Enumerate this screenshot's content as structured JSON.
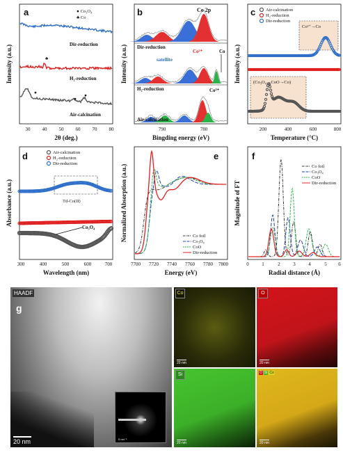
{
  "panel_a": {
    "letter": "a",
    "xlabel": "2θ (deg.)",
    "ylabel": "Intensity (a.u.)",
    "ticks": [
      "30",
      "40",
      "50",
      "60",
      "70",
      "80"
    ],
    "legend": [
      {
        "symbol": "●",
        "label": "Co₃O₄"
      },
      {
        "symbol": "♣",
        "label": "Co"
      }
    ],
    "curves": [
      {
        "label": "Dir-reduction",
        "color": "#2f6fc9"
      },
      {
        "label": "H₂-reduction",
        "color": "#e02020"
      },
      {
        "label": "Air-calcination",
        "color": "#555555"
      }
    ]
  },
  "panel_b": {
    "letter": "b",
    "xlabel": "Bingding energy (eV)",
    "ylabel": "Intensity (a.u.)",
    "ticks": [
      "790",
      "780"
    ],
    "title": "Co 2p",
    "curves": [
      {
        "label": "Dir-reduction"
      },
      {
        "label": "H₂-reduction"
      },
      {
        "label": "Air-calcination"
      }
    ],
    "annotations": {
      "satellite": "satellite",
      "co2": "Co²⁺",
      "co": "Co",
      "co3": "Co³⁺"
    }
  },
  "panel_c": {
    "letter": "c",
    "xlabel": "Temperature (°C)",
    "ylabel": "Intensity (a.u.)",
    "ticks": [
      "200",
      "400",
      "600",
      "800"
    ],
    "legend": [
      {
        "label": "Air-calcination",
        "color": "#555555"
      },
      {
        "label": "H₂-reduction",
        "color": "#e02020"
      },
      {
        "label": "Dir-reduction",
        "color": "#2f6fc9"
      }
    ],
    "annotations": {
      "box_high": "Co²⁺→Co",
      "box_low": "(Co₃O₄→CoO→Co)"
    }
  },
  "panel_d": {
    "letter": "d",
    "xlabel": "Wavelength (nm)",
    "ylabel": "Absorbance (a.u.)",
    "ticks": [
      "300",
      "400",
      "500",
      "600",
      "700"
    ],
    "legend": [
      {
        "label": "Air-calcination",
        "color": "#555555"
      },
      {
        "label": "H₂-reduction",
        "color": "#e02020"
      },
      {
        "label": "Dir-reduction",
        "color": "#2f6fc9"
      }
    ],
    "annotations": {
      "td": "Td-Co(II)",
      "co3o4": "Co₃O₄"
    }
  },
  "panel_e": {
    "letter": "e",
    "xlabel": "Energy (eV)",
    "ylabel": "Normalized Absorption (a.u.)",
    "ticks": [
      "7700",
      "7720",
      "7740",
      "7760",
      "7780",
      "7800"
    ],
    "legend": [
      {
        "label": "Co foil",
        "color": "#333333"
      },
      {
        "label": "Co₃O₄",
        "color": "#1f3fb0"
      },
      {
        "label": "CoO",
        "color": "#2bb34a"
      },
      {
        "label": "Dir-reduction",
        "color": "#e02020"
      }
    ]
  },
  "panel_f": {
    "letter": "f",
    "xlabel": "Radial distance (Å)",
    "ylabel": "Magnitude of FT",
    "ticks": [
      "0",
      "1",
      "2",
      "3",
      "4",
      "5",
      "6"
    ],
    "legend": [
      {
        "label": "Co foil",
        "color": "#333333"
      },
      {
        "label": "Co₃O₄",
        "color": "#1f3fb0"
      },
      {
        "label": "CoO",
        "color": "#2bb34a"
      },
      {
        "label": "Dir-reduction",
        "color": "#e02020"
      }
    ]
  },
  "panel_g": {
    "letter": "g",
    "mode": "HAADF",
    "scale": "20 nm",
    "maps": [
      {
        "element": "Co",
        "scale": "20 nm",
        "color": "#d6d81e"
      },
      {
        "element": "O",
        "scale": "20 nm",
        "color": "#c8141a"
      },
      {
        "element": "Si",
        "scale": "20 nm",
        "color": "#3dbb2a"
      },
      {
        "element": "",
        "scale": "20 nm",
        "color": "#d8b020"
      }
    ],
    "overlay_legend": [
      "O",
      "Si",
      "Co"
    ],
    "inset_scale": "5 nm⁻¹"
  }
}
